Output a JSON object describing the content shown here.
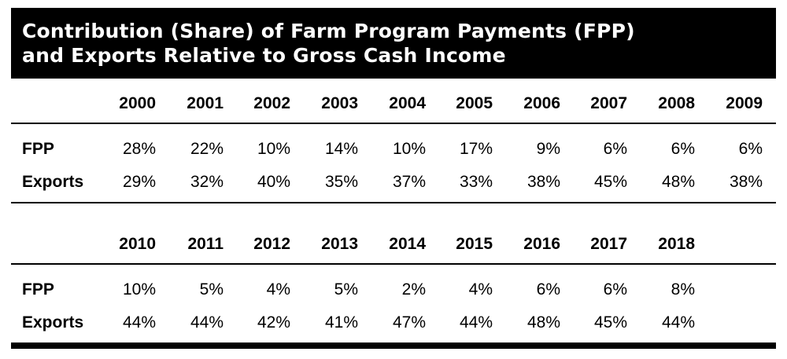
{
  "chart_data": {
    "type": "table",
    "title_lines": [
      "Contribution (Share) of Farm Program Payments (FPP)",
      "and Exports Relative to Gross Cash Income"
    ],
    "row_labels": [
      "FPP",
      "Exports"
    ],
    "blocks": [
      {
        "years": [
          "2000",
          "2001",
          "2002",
          "2003",
          "2004",
          "2005",
          "2006",
          "2007",
          "2008",
          "2009"
        ],
        "rows": [
          {
            "label": "FPP",
            "values": [
              "28%",
              "22%",
              "10%",
              "14%",
              "10%",
              "17%",
              "9%",
              "6%",
              "6%",
              "6%"
            ]
          },
          {
            "label": "Exports",
            "values": [
              "29%",
              "32%",
              "40%",
              "35%",
              "37%",
              "33%",
              "38%",
              "45%",
              "48%",
              "38%"
            ]
          }
        ]
      },
      {
        "years": [
          "2010",
          "2011",
          "2012",
          "2013",
          "2014",
          "2015",
          "2016",
          "2017",
          "2018"
        ],
        "rows": [
          {
            "label": "FPP",
            "values": [
              "10%",
              "5%",
              "4%",
              "5%",
              "2%",
              "4%",
              "6%",
              "6%",
              "8%"
            ]
          },
          {
            "label": "Exports",
            "values": [
              "44%",
              "44%",
              "42%",
              "41%",
              "47%",
              "44%",
              "48%",
              "45%",
              "44%"
            ]
          }
        ]
      }
    ]
  },
  "colors": {
    "header_background": "#000000",
    "header_text": "#ffffff",
    "text": "#000000",
    "rules": "#000000"
  }
}
